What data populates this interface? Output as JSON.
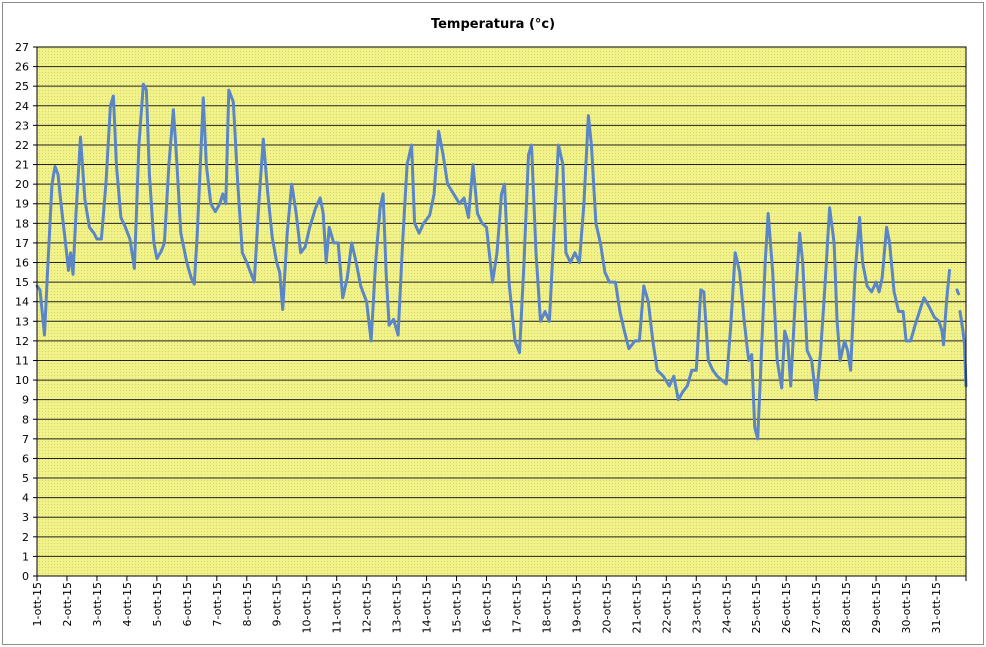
{
  "chart_data": {
    "type": "line",
    "title": "Temperatura (°c)",
    "xlabel": "",
    "ylabel": "",
    "ylim": [
      0,
      27
    ],
    "y_ticks": [
      0,
      1,
      2,
      3,
      4,
      5,
      6,
      7,
      8,
      9,
      10,
      11,
      12,
      13,
      14,
      15,
      16,
      17,
      18,
      19,
      20,
      21,
      22,
      23,
      24,
      25,
      26,
      27
    ],
    "x_tick_labels": [
      "1-ott-15",
      "2-ott-15",
      "3-ott-15",
      "4-ott-15",
      "5-ott-15",
      "6-ott-15",
      "7-ott-15",
      "8-ott-15",
      "9-ott-15",
      "10-ott-15",
      "11-ott-15",
      "12-ott-15",
      "13-ott-15",
      "14-ott-15",
      "15-ott-15",
      "16-ott-15",
      "17-ott-15",
      "18-ott-15",
      "19-ott-15",
      "20-ott-15",
      "21-ott-15",
      "22-ott-15",
      "23-ott-15",
      "24-ott-15",
      "25-ott-15",
      "26-ott-15",
      "27-ott-15",
      "28-ott-15",
      "29-ott-15",
      "30-ott-15",
      "31-ott-15"
    ],
    "x_days_range": [
      1,
      32
    ],
    "grid": true,
    "plot_background": "#f2f28a",
    "line_color": "#5a86c8",
    "series": [
      {
        "points": [
          [
            1.0,
            14.8
          ],
          [
            1.1,
            14.6
          ],
          [
            1.25,
            12.3
          ],
          [
            1.35,
            15.5
          ],
          [
            1.5,
            20.0
          ],
          [
            1.6,
            20.9
          ],
          [
            1.7,
            20.5
          ],
          [
            1.8,
            19.0
          ],
          [
            1.95,
            17.0
          ],
          [
            2.05,
            15.6
          ],
          [
            2.12,
            16.5
          ],
          [
            2.2,
            15.4
          ],
          [
            2.3,
            18.5
          ],
          [
            2.45,
            22.4
          ],
          [
            2.6,
            19.2
          ],
          [
            2.75,
            17.8
          ],
          [
            2.9,
            17.5
          ],
          [
            3.0,
            17.2
          ],
          [
            3.15,
            17.2
          ],
          [
            3.3,
            20.0
          ],
          [
            3.45,
            24.0
          ],
          [
            3.55,
            24.5
          ],
          [
            3.65,
            21.0
          ],
          [
            3.8,
            18.3
          ],
          [
            3.95,
            17.8
          ],
          [
            4.1,
            17.2
          ],
          [
            4.25,
            15.7
          ],
          [
            4.4,
            22.0
          ],
          [
            4.55,
            25.1
          ],
          [
            4.65,
            24.8
          ],
          [
            4.75,
            20.5
          ],
          [
            4.9,
            17.0
          ],
          [
            5.0,
            16.2
          ],
          [
            5.15,
            16.6
          ],
          [
            5.25,
            17.0
          ],
          [
            5.4,
            21.0
          ],
          [
            5.55,
            23.8
          ],
          [
            5.65,
            21.5
          ],
          [
            5.8,
            17.5
          ],
          [
            6.0,
            16.0
          ],
          [
            6.15,
            15.2
          ],
          [
            6.25,
            14.9
          ],
          [
            6.35,
            17.5
          ],
          [
            6.55,
            24.4
          ],
          [
            6.65,
            21.0
          ],
          [
            6.8,
            19.0
          ],
          [
            6.95,
            18.6
          ],
          [
            7.1,
            19.0
          ],
          [
            7.2,
            19.5
          ],
          [
            7.3,
            19.0
          ],
          [
            7.4,
            24.8
          ],
          [
            7.55,
            24.2
          ],
          [
            7.7,
            20.0
          ],
          [
            7.85,
            16.5
          ],
          [
            8.0,
            16.0
          ],
          [
            8.15,
            15.4
          ],
          [
            8.25,
            15.0
          ],
          [
            8.4,
            19.0
          ],
          [
            8.55,
            22.3
          ],
          [
            8.7,
            19.5
          ],
          [
            8.85,
            17.3
          ],
          [
            9.0,
            16.0
          ],
          [
            9.1,
            15.5
          ],
          [
            9.2,
            13.6
          ],
          [
            9.35,
            17.5
          ],
          [
            9.5,
            20.0
          ],
          [
            9.65,
            18.5
          ],
          [
            9.8,
            16.5
          ],
          [
            9.95,
            16.8
          ],
          [
            10.1,
            17.8
          ],
          [
            10.3,
            18.8
          ],
          [
            10.45,
            19.3
          ],
          [
            10.55,
            18.5
          ],
          [
            10.65,
            16.0
          ],
          [
            10.75,
            17.8
          ],
          [
            10.9,
            17.0
          ],
          [
            11.05,
            17.0
          ],
          [
            11.2,
            14.2
          ],
          [
            11.35,
            15.2
          ],
          [
            11.5,
            17.0
          ],
          [
            11.65,
            16.0
          ],
          [
            11.8,
            14.8
          ],
          [
            12.0,
            14.0
          ],
          [
            12.15,
            12.0
          ],
          [
            12.3,
            16.0
          ],
          [
            12.45,
            18.8
          ],
          [
            12.55,
            19.5
          ],
          [
            12.65,
            15.5
          ],
          [
            12.75,
            12.8
          ],
          [
            12.9,
            13.1
          ],
          [
            13.05,
            12.3
          ],
          [
            13.2,
            17.0
          ],
          [
            13.35,
            21.0
          ],
          [
            13.5,
            22.0
          ],
          [
            13.6,
            18.0
          ],
          [
            13.75,
            17.5
          ],
          [
            13.9,
            18.0
          ],
          [
            14.1,
            18.4
          ],
          [
            14.25,
            19.5
          ],
          [
            14.4,
            22.7
          ],
          [
            14.55,
            21.5
          ],
          [
            14.7,
            20.0
          ],
          [
            14.9,
            19.5
          ],
          [
            15.1,
            19.0
          ],
          [
            15.25,
            19.3
          ],
          [
            15.4,
            18.3
          ],
          [
            15.55,
            21.0
          ],
          [
            15.7,
            18.5
          ],
          [
            15.85,
            18.0
          ],
          [
            16.0,
            17.8
          ],
          [
            16.2,
            15.0
          ],
          [
            16.35,
            16.5
          ],
          [
            16.5,
            19.5
          ],
          [
            16.6,
            20.0
          ],
          [
            16.75,
            15.0
          ],
          [
            16.95,
            12.0
          ],
          [
            17.1,
            11.4
          ],
          [
            17.25,
            16.0
          ],
          [
            17.4,
            21.5
          ],
          [
            17.5,
            22.0
          ],
          [
            17.65,
            16.5
          ],
          [
            17.8,
            13.0
          ],
          [
            17.95,
            13.5
          ],
          [
            18.1,
            13.0
          ],
          [
            18.25,
            17.5
          ],
          [
            18.4,
            22.0
          ],
          [
            18.55,
            21.0
          ],
          [
            18.65,
            16.5
          ],
          [
            18.8,
            16.0
          ],
          [
            18.95,
            16.5
          ],
          [
            19.1,
            16.0
          ],
          [
            19.25,
            19.0
          ],
          [
            19.4,
            23.5
          ],
          [
            19.5,
            22.0
          ],
          [
            19.65,
            18.0
          ],
          [
            19.8,
            17.0
          ],
          [
            19.95,
            15.5
          ],
          [
            20.1,
            15.0
          ],
          [
            20.3,
            15.0
          ],
          [
            20.45,
            13.5
          ],
          [
            20.6,
            12.5
          ],
          [
            20.75,
            11.6
          ],
          [
            20.95,
            12.0
          ],
          [
            21.1,
            12.0
          ],
          [
            21.25,
            14.8
          ],
          [
            21.4,
            14.0
          ],
          [
            21.55,
            12.0
          ],
          [
            21.7,
            10.5
          ],
          [
            21.9,
            10.2
          ],
          [
            22.1,
            9.7
          ],
          [
            22.25,
            10.2
          ],
          [
            22.4,
            9.0
          ],
          [
            22.55,
            9.4
          ],
          [
            22.7,
            9.7
          ],
          [
            22.85,
            10.5
          ],
          [
            23.0,
            10.5
          ],
          [
            23.15,
            14.6
          ],
          [
            23.25,
            14.5
          ],
          [
            23.4,
            11.0
          ],
          [
            23.55,
            10.5
          ],
          [
            23.7,
            10.2
          ],
          [
            23.85,
            10.0
          ],
          [
            24.0,
            9.8
          ],
          [
            24.15,
            12.8
          ],
          [
            24.3,
            16.5
          ],
          [
            24.45,
            15.5
          ],
          [
            24.6,
            13.0
          ],
          [
            24.75,
            11.0
          ],
          [
            24.85,
            11.3
          ],
          [
            24.95,
            7.6
          ],
          [
            25.05,
            7.0
          ],
          [
            25.15,
            10.5
          ],
          [
            25.3,
            16.0
          ],
          [
            25.4,
            18.5
          ],
          [
            25.55,
            15.5
          ],
          [
            25.7,
            11.0
          ],
          [
            25.85,
            9.6
          ],
          [
            25.95,
            12.5
          ],
          [
            26.05,
            12.0
          ],
          [
            26.15,
            9.7
          ],
          [
            26.3,
            14.0
          ],
          [
            26.45,
            17.5
          ],
          [
            26.55,
            16.0
          ],
          [
            26.7,
            11.5
          ],
          [
            26.85,
            11.0
          ],
          [
            27.0,
            9.0
          ],
          [
            27.15,
            11.5
          ],
          [
            27.3,
            15.0
          ],
          [
            27.45,
            18.8
          ],
          [
            27.6,
            17.0
          ],
          [
            27.7,
            13.0
          ],
          [
            27.8,
            11.0
          ],
          [
            27.95,
            12.0
          ],
          [
            28.05,
            11.5
          ],
          [
            28.15,
            10.5
          ],
          [
            28.3,
            15.5
          ],
          [
            28.45,
            18.3
          ],
          [
            28.55,
            16.0
          ],
          [
            28.7,
            14.8
          ],
          [
            28.85,
            14.5
          ],
          [
            29.0,
            15.0
          ],
          [
            29.1,
            14.5
          ],
          [
            29.2,
            15.2
          ],
          [
            29.35,
            17.8
          ],
          [
            29.45,
            17.0
          ],
          [
            29.6,
            14.5
          ],
          [
            29.75,
            13.5
          ],
          [
            29.9,
            13.5
          ],
          [
            30.0,
            12.0
          ],
          [
            30.15,
            12.0
          ],
          [
            30.3,
            12.8
          ],
          [
            30.45,
            13.5
          ],
          [
            30.6,
            14.2
          ],
          [
            30.75,
            13.8
          ],
          [
            30.85,
            13.5
          ],
          [
            30.95,
            13.2
          ],
          [
            31.1,
            13.0
          ],
          [
            31.2,
            12.5
          ],
          [
            31.25,
            11.8
          ],
          [
            31.35,
            14.0
          ],
          [
            31.45,
            15.6
          ]
        ]
      },
      {
        "points": [
          [
            31.7,
            14.6
          ],
          [
            31.75,
            14.4
          ]
        ]
      },
      {
        "points": [
          [
            31.8,
            13.5
          ],
          [
            31.9,
            12.5
          ],
          [
            31.95,
            11.8
          ],
          [
            32.0,
            9.7
          ]
        ]
      }
    ]
  }
}
